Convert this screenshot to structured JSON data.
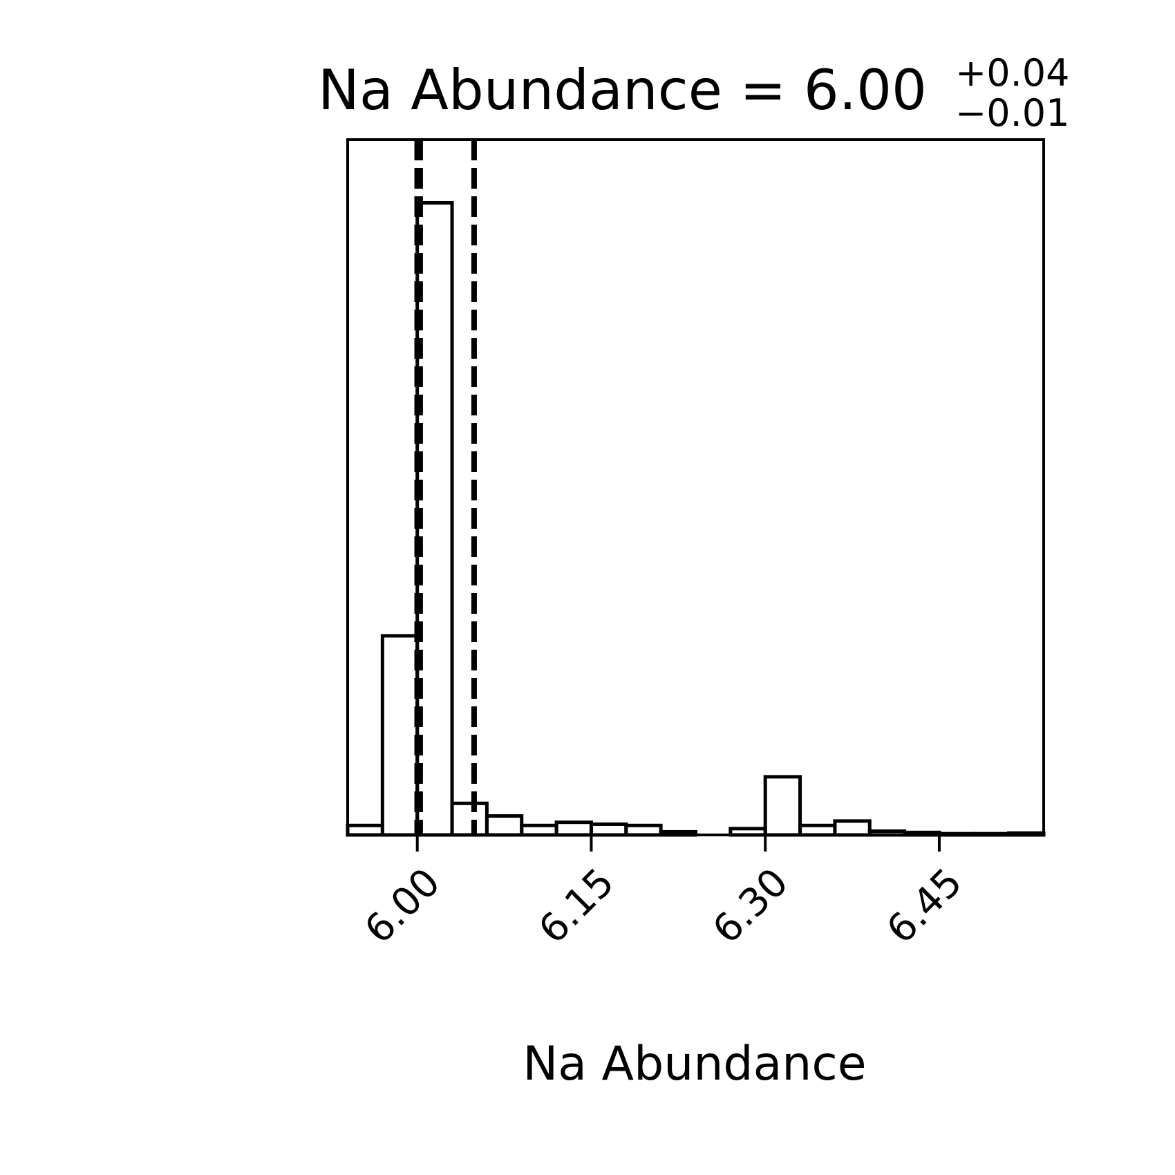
{
  "chart_data": {
    "type": "histogram",
    "title": {
      "main": "Na Abundance = 6.00",
      "upper": "+0.04",
      "lower": "−0.01"
    },
    "xlabel": "Na Abundance",
    "ylabel": "",
    "xlim": [
      5.94,
      6.54
    ],
    "ylim": [
      0,
      1.1
    ],
    "bin_edges": [
      5.94,
      5.97,
      6.0,
      6.03,
      6.06,
      6.09,
      6.12,
      6.15,
      6.18,
      6.21,
      6.24,
      6.27,
      6.3,
      6.33,
      6.36,
      6.39,
      6.42,
      6.45,
      6.48,
      6.51,
      6.54
    ],
    "counts": [
      0.015,
      0.315,
      1.0,
      0.05,
      0.03,
      0.015,
      0.02,
      0.017,
      0.015,
      0.005,
      0.0,
      0.01,
      0.092,
      0.015,
      0.022,
      0.006,
      0.004,
      0.002,
      0.002,
      0.003
    ],
    "quantile_lines": [
      {
        "name": "16th percentile",
        "x": 5.9999,
        "style": "dashed"
      },
      {
        "name": "median",
        "x": 6.0025,
        "style": "dashed"
      },
      {
        "name": "84th percentile",
        "x": 6.049,
        "style": "dashed"
      }
    ],
    "xticks": [
      6.0,
      6.15,
      6.3,
      6.45
    ],
    "xtick_labels": [
      "6.00",
      "6.15",
      "6.30",
      "6.45"
    ],
    "tick_label_rotation_deg": 45,
    "grid": false,
    "legend": "none",
    "colors": {
      "line": "#000000",
      "background": "#ffffff"
    }
  }
}
